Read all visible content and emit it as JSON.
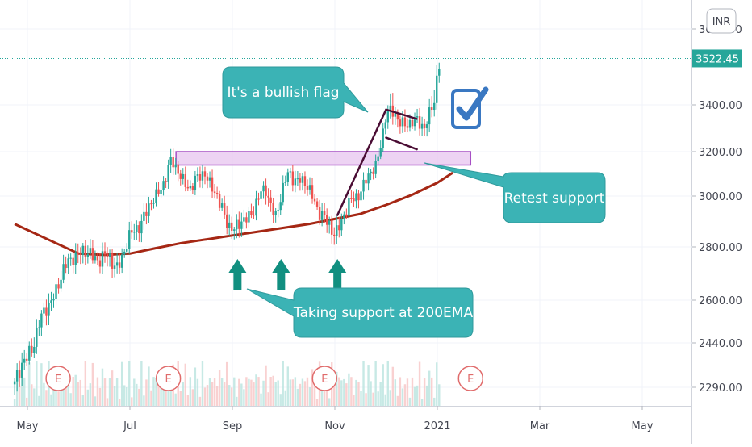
{
  "chart_data": {
    "type": "candlestick",
    "currency_badge": "INR",
    "last_price": "3522.45",
    "y_ticks": [
      {
        "value": 3600,
        "label": "3600.00"
      },
      {
        "value": 3400,
        "label": "3400.00"
      },
      {
        "value": 3200,
        "label": "3200.00"
      },
      {
        "value": 3000,
        "label": "3000.00"
      },
      {
        "value": 2800,
        "label": "2800.00"
      },
      {
        "value": 2600,
        "label": "2600.00"
      },
      {
        "value": 2440,
        "label": "2440.00"
      },
      {
        "value": 2290,
        "label": "2290.00"
      }
    ],
    "x_ticks": [
      {
        "month": 0,
        "label": "May"
      },
      {
        "month": 2,
        "label": "Jul"
      },
      {
        "month": 4,
        "label": "Sep"
      },
      {
        "month": 6,
        "label": "Nov"
      },
      {
        "month": 8,
        "label": "2021"
      },
      {
        "month": 10,
        "label": "Mar"
      },
      {
        "month": 12,
        "label": "May"
      }
    ],
    "ohlc_anchors": [
      {
        "month": -0.25,
        "close": 2300
      },
      {
        "month": 0.1,
        "close": 2440
      },
      {
        "month": 0.35,
        "close": 2560
      },
      {
        "month": 0.7,
        "close": 2700
      },
      {
        "month": 0.9,
        "close": 2780
      },
      {
        "month": 1.2,
        "close": 2770
      },
      {
        "month": 1.5,
        "close": 2760
      },
      {
        "month": 1.75,
        "close": 2730
      },
      {
        "month": 2.1,
        "close": 2870
      },
      {
        "month": 2.5,
        "close": 2990
      },
      {
        "month": 2.8,
        "close": 3150
      },
      {
        "month": 3.2,
        "close": 3030
      },
      {
        "month": 3.45,
        "close": 3120
      },
      {
        "month": 3.75,
        "close": 2960
      },
      {
        "month": 4.05,
        "close": 2860
      },
      {
        "month": 4.4,
        "close": 2950
      },
      {
        "month": 4.65,
        "close": 3030
      },
      {
        "month": 4.85,
        "close": 2920
      },
      {
        "month": 5.1,
        "close": 3110
      },
      {
        "month": 5.5,
        "close": 3030
      },
      {
        "month": 5.85,
        "close": 2880
      },
      {
        "month": 6.0,
        "close": 2860
      },
      {
        "month": 6.4,
        "close": 3000
      },
      {
        "month": 6.8,
        "close": 3130
      },
      {
        "month": 7.0,
        "close": 3370
      },
      {
        "month": 7.4,
        "close": 3320
      },
      {
        "month": 7.75,
        "close": 3320
      },
      {
        "month": 7.95,
        "close": 3410
      },
      {
        "month": 8.05,
        "close": 3522
      }
    ],
    "ema200": {
      "label": "200EMA",
      "points": [
        {
          "month": -0.25,
          "value": 2890
        },
        {
          "month": 0.5,
          "value": 2820
        },
        {
          "month": 1.0,
          "value": 2775
        },
        {
          "month": 1.5,
          "value": 2770
        },
        {
          "month": 2.0,
          "value": 2775
        },
        {
          "month": 2.5,
          "value": 2795
        },
        {
          "month": 3.0,
          "value": 2815
        },
        {
          "month": 3.5,
          "value": 2830
        },
        {
          "month": 4.0,
          "value": 2845
        },
        {
          "month": 4.5,
          "value": 2860
        },
        {
          "month": 5.0,
          "value": 2875
        },
        {
          "month": 5.5,
          "value": 2890
        },
        {
          "month": 6.0,
          "value": 2910
        },
        {
          "month": 6.5,
          "value": 2930
        },
        {
          "month": 7.0,
          "value": 2965
        },
        {
          "month": 7.5,
          "value": 3005
        },
        {
          "month": 8.0,
          "value": 3060
        },
        {
          "month": 8.3,
          "value": 3105
        }
      ]
    },
    "earnings_markers": [
      {
        "month": 0.6,
        "label": "E"
      },
      {
        "month": 2.75,
        "label": "E"
      },
      {
        "month": 5.8,
        "label": "E"
      },
      {
        "month": 8.65,
        "label": "E"
      }
    ],
    "support_zone": {
      "month_start": 2.9,
      "month_end": 8.65,
      "low": 3140,
      "high": 3200
    },
    "flag": {
      "pole": [
        {
          "month": 6.05,
          "value": 2925
        },
        {
          "month": 7.0,
          "value": 3380
        }
      ],
      "upper": [
        {
          "month": 7.0,
          "value": 3380
        },
        {
          "month": 7.6,
          "value": 3340
        }
      ],
      "lower": [
        {
          "month": 7.0,
          "value": 3260
        },
        {
          "month": 7.6,
          "value": 3210
        }
      ]
    },
    "arrows_months": [
      4.1,
      4.95,
      6.05
    ],
    "annotations": {
      "flag_note": "It's a bullish flag",
      "retest_note": "Retest support",
      "support_note": "Taking support at 200EMA"
    },
    "colors": {
      "up": "#26a69a",
      "down": "#ef5350",
      "ema": "#a52714",
      "callout_fill": "#3bb3b5",
      "arrow": "#118f80",
      "zone_fill": "#e7c4ef",
      "zone_stroke": "#a64fc4",
      "flag_line": "#4a0d34",
      "check_blue": "#3a78c2",
      "last_price_bg": "#26a69a"
    }
  }
}
